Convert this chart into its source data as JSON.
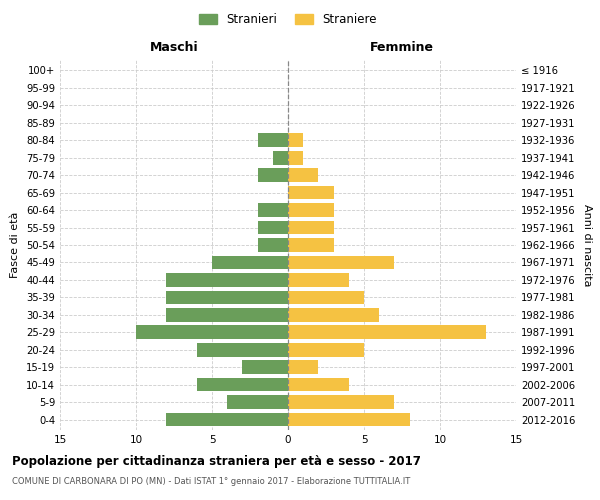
{
  "age_groups": [
    "0-4",
    "5-9",
    "10-14",
    "15-19",
    "20-24",
    "25-29",
    "30-34",
    "35-39",
    "40-44",
    "45-49",
    "50-54",
    "55-59",
    "60-64",
    "65-69",
    "70-74",
    "75-79",
    "80-84",
    "85-89",
    "90-94",
    "95-99",
    "100+"
  ],
  "birth_years": [
    "2012-2016",
    "2007-2011",
    "2002-2006",
    "1997-2001",
    "1992-1996",
    "1987-1991",
    "1982-1986",
    "1977-1981",
    "1972-1976",
    "1967-1971",
    "1962-1966",
    "1957-1961",
    "1952-1956",
    "1947-1951",
    "1942-1946",
    "1937-1941",
    "1932-1936",
    "1927-1931",
    "1922-1926",
    "1917-1921",
    "≤ 1916"
  ],
  "males": [
    8,
    4,
    6,
    3,
    6,
    10,
    8,
    8,
    8,
    5,
    2,
    2,
    2,
    0,
    2,
    1,
    2,
    0,
    0,
    0,
    0
  ],
  "females": [
    8,
    7,
    4,
    2,
    5,
    13,
    6,
    5,
    4,
    7,
    3,
    3,
    3,
    3,
    2,
    1,
    1,
    0,
    0,
    0,
    0
  ],
  "male_color": "#6a9e5a",
  "female_color": "#f5c242",
  "center_line_color": "#888888",
  "grid_color": "#cccccc",
  "background_color": "#ffffff",
  "title": "Popolazione per cittadinanza straniera per età e sesso - 2017",
  "subtitle": "COMUNE DI CARBONARA DI PO (MN) - Dati ISTAT 1° gennaio 2017 - Elaborazione TUTTITALIA.IT",
  "xlabel_left": "Maschi",
  "xlabel_right": "Femmine",
  "ylabel_left": "Fasce di età",
  "ylabel_right": "Anni di nascita",
  "legend_male": "Stranieri",
  "legend_female": "Straniere",
  "xlim": 15
}
